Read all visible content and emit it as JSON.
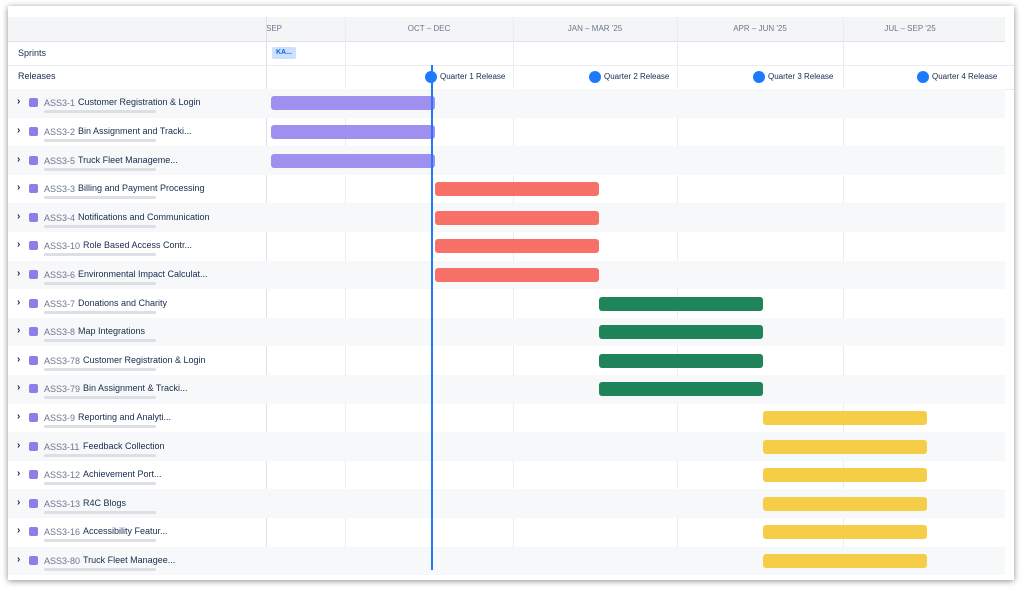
{
  "header": {
    "columns": [
      "SEP",
      "OCT – DEC",
      "JAN – MAR '25",
      "APR – JUN '25",
      "JUL – SEP '25"
    ]
  },
  "sprints": {
    "label": "Sprints",
    "chip": "KA..."
  },
  "releases": {
    "label": "Releases",
    "items": [
      "Quarter 1 Release",
      "Quarter 2 Release",
      "Quarter 3 Release",
      "Quarter 4 Release"
    ]
  },
  "groups": [
    {
      "color": "#9f8fef",
      "epics": [
        {
          "key": "ASS3-1",
          "title": "Customer Registration & Login"
        },
        {
          "key": "ASS3-2",
          "title": "Bin Assignment and Tracki..."
        },
        {
          "key": "ASS3-5",
          "title": "Truck Fleet Manageme..."
        }
      ]
    },
    {
      "color": "#f87168",
      "epics": [
        {
          "key": "ASS3-3",
          "title": "Billing and Payment Processing"
        },
        {
          "key": "ASS3-4",
          "title": "Notifications and Communication"
        },
        {
          "key": "ASS3-10",
          "title": "Role Based Access Contr..."
        },
        {
          "key": "ASS3-6",
          "title": "Environmental Impact Calculat..."
        }
      ]
    },
    {
      "color": "#1f845a",
      "epics": [
        {
          "key": "ASS3-7",
          "title": "Donations and Charity"
        },
        {
          "key": "ASS3-8",
          "title": "Map Integrations"
        },
        {
          "key": "ASS3-78",
          "title": "Customer Registration & Login"
        },
        {
          "key": "ASS3-79",
          "title": "Bin Assignment & Tracki..."
        }
      ]
    },
    {
      "color": "#f5cd47",
      "epics": [
        {
          "key": "ASS3-9",
          "title": "Reporting and Analyti..."
        },
        {
          "key": "ASS3-11",
          "title": "Feedback Collection"
        },
        {
          "key": "ASS3-12",
          "title": "Achievement Port..."
        },
        {
          "key": "ASS3-13",
          "title": "R4C Blogs"
        },
        {
          "key": "ASS3-16",
          "title": "Accessibility Featur..."
        },
        {
          "key": "ASS3-80",
          "title": "Truck Fleet Managee..."
        }
      ]
    }
  ]
}
